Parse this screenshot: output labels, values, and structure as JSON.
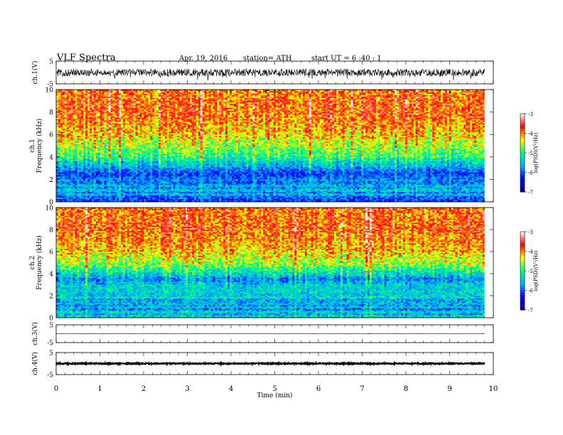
{
  "header": {
    "title": "VLF  Spectra",
    "date": "Apr. 19,  2016",
    "station": "station= ATH",
    "start": "start  UT  =   6  :40 : 1"
  },
  "chart_data": [
    {
      "type": "line",
      "name": "ch1-timeseries",
      "ylabel": "ch.1(V)",
      "ylim": [
        -5,
        5
      ],
      "yticks": [
        "5",
        "-5"
      ],
      "xlim": [
        0,
        10
      ],
      "x_data_end": 9.8,
      "baseline": 0,
      "amplitude": 1.6,
      "color": "#000000"
    },
    {
      "type": "heatmap",
      "name": "ch1-spectrogram",
      "ylabel": [
        "ch.1",
        "Frequency  (kHz)"
      ],
      "ylim": [
        0,
        10
      ],
      "yticks": [
        "0",
        "2",
        "4",
        "6",
        "8",
        "10"
      ],
      "xlim": [
        0,
        10
      ],
      "x_data_end": 9.8,
      "profile_freq_khz": [
        0,
        1,
        2,
        2.5,
        3,
        4,
        5,
        6,
        7,
        8,
        9,
        10
      ],
      "profile_logpsd": [
        -6.0,
        -5.6,
        -5.8,
        -6.1,
        -5.7,
        -5.0,
        -4.6,
        -4.2,
        -4.0,
        -3.9,
        -3.9,
        -3.9
      ],
      "colorbar": {
        "label": "log(PSD)(V²/Hz)",
        "range": [
          -7,
          -3
        ],
        "ticks": [
          "-3",
          "-4",
          "-5",
          "-6",
          "-7"
        ]
      }
    },
    {
      "type": "heatmap",
      "name": "ch2-spectrogram",
      "ylabel": [
        "ch.2",
        "Frequency  (kHz)"
      ],
      "ylim": [
        0,
        10
      ],
      "yticks": [
        "0",
        "2",
        "4",
        "6",
        "8",
        "10"
      ],
      "xlim": [
        0,
        10
      ],
      "x_data_end": 9.8,
      "profile_freq_khz": [
        0,
        1,
        2,
        3,
        3.5,
        4,
        5,
        6,
        7,
        8,
        9,
        10
      ],
      "profile_logpsd": [
        -5.6,
        -5.6,
        -5.5,
        -5.4,
        -5.8,
        -5.3,
        -4.5,
        -4.2,
        -4.0,
        -3.9,
        -3.9,
        -3.9
      ],
      "colorbar": {
        "label": "log(PSD)(V²/Hz)",
        "range": [
          -7,
          -3
        ],
        "ticks": [
          "-3",
          "-4",
          "-5",
          "-6",
          "-7"
        ]
      }
    },
    {
      "type": "line",
      "name": "ch3-timeseries",
      "ylabel": "ch.3(V)",
      "ylim": [
        -5,
        5
      ],
      "yticks": [
        "5",
        "-5"
      ],
      "xlim": [
        0,
        10
      ],
      "x_data_end": 9.8,
      "baseline": 0,
      "amplitude": 0.08,
      "color": "#000000"
    },
    {
      "type": "line",
      "name": "ch4-timeseries",
      "ylabel": "ch.4(V)",
      "ylim": [
        -5,
        5
      ],
      "yticks": [
        "5",
        "-5"
      ],
      "xlim": [
        0,
        10
      ],
      "x_data_end": 9.8,
      "baseline": 0,
      "amplitude": 0.25,
      "color": "#000000"
    }
  ],
  "xaxis": {
    "label": "Time  (min)",
    "ticks": [
      "0",
      "1",
      "2",
      "3",
      "4",
      "5",
      "6",
      "7",
      "8",
      "9",
      "10"
    ],
    "range": [
      0,
      10
    ]
  },
  "colors": {
    "colormap": [
      "#00007a",
      "#0000ff",
      "#00b0ff",
      "#00ff80",
      "#ffff00",
      "#ff0000",
      "#ffffff"
    ]
  }
}
